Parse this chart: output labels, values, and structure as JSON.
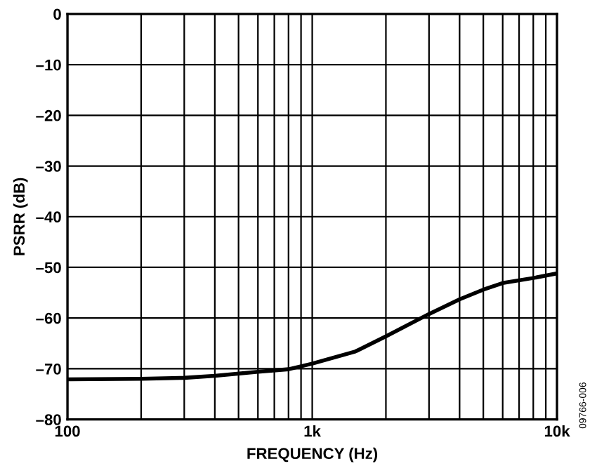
{
  "chart_data": {
    "type": "line",
    "xlabel": "FREQUENCY (Hz)",
    "ylabel": "PSRR (dB)",
    "x": [
      100,
      200,
      300,
      400,
      600,
      800,
      1000,
      1500,
      2000,
      3000,
      4000,
      5000,
      6000,
      8000,
      10000
    ],
    "series": [
      {
        "color": "#000000",
        "values": [
          -72.1,
          -72,
          -71.8,
          -71.4,
          -70.6,
          -70.1,
          -69,
          -66.6,
          -63.6,
          -59.2,
          -56.3,
          -54.4,
          -53.1,
          -52.1,
          -51.2
        ]
      }
    ],
    "log": "x",
    "xlim": [
      100,
      10000
    ],
    "ylim": [
      -80,
      0
    ],
    "xticks": [
      {
        "value": 100,
        "label": "100"
      },
      {
        "value": 1000,
        "label": "1k"
      },
      {
        "value": 10000,
        "label": "10k"
      }
    ],
    "yticks": [
      {
        "value": -80,
        "label": "–80"
      },
      {
        "value": -70,
        "label": "–70"
      },
      {
        "value": -60,
        "label": "–60"
      },
      {
        "value": -50,
        "label": "–50"
      },
      {
        "value": -40,
        "label": "–40"
      },
      {
        "value": -30,
        "label": "–30"
      },
      {
        "value": -20,
        "label": "–20"
      },
      {
        "value": -10,
        "label": "–10"
      },
      0
    ],
    "grid": true,
    "marker": "none",
    "line_style": "solid",
    "annotations": [
      "09766-006"
    ]
  }
}
